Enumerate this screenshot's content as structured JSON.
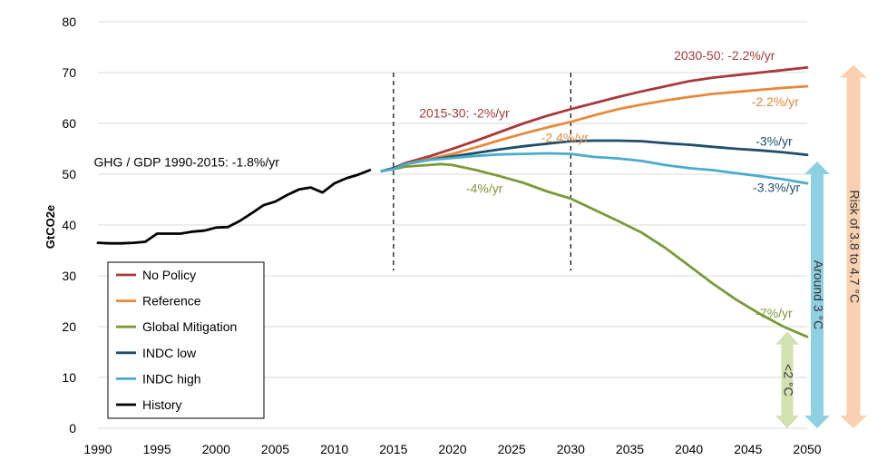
{
  "chart_data": {
    "type": "line",
    "xlabel": "",
    "ylabel": "GtCO2e",
    "xlim": [
      1990,
      2050
    ],
    "ylim": [
      0,
      80
    ],
    "x_ticks": [
      1990,
      1995,
      2000,
      2005,
      2010,
      2015,
      2020,
      2025,
      2030,
      2035,
      2040,
      2045,
      2050
    ],
    "y_ticks": [
      0,
      10,
      20,
      30,
      40,
      50,
      60,
      70,
      80
    ],
    "grid": "horizontal",
    "legend_position": "bottom-left",
    "series": [
      {
        "name": "No Policy",
        "color": "#a83a3a",
        "x": [
          2014,
          2015,
          2016,
          2018,
          2020,
          2022,
          2024,
          2026,
          2028,
          2030,
          2032,
          2034,
          2036,
          2038,
          2040,
          2042,
          2044,
          2046,
          2048,
          2050
        ],
        "y": [
          50.6,
          51.2,
          52.2,
          53.5,
          55.0,
          56.6,
          58.3,
          60.0,
          61.5,
          62.8,
          64.0,
          65.2,
          66.3,
          67.3,
          68.3,
          69.0,
          69.5,
          70.0,
          70.5,
          71.0
        ]
      },
      {
        "name": "Reference",
        "color": "#e8883a",
        "x": [
          2014,
          2015,
          2016,
          2018,
          2020,
          2022,
          2024,
          2026,
          2028,
          2030,
          2032,
          2034,
          2036,
          2038,
          2040,
          2042,
          2044,
          2046,
          2048,
          2050
        ],
        "y": [
          50.6,
          51.2,
          52.0,
          53.0,
          54.0,
          55.3,
          56.7,
          58.0,
          59.2,
          60.3,
          61.6,
          62.8,
          63.7,
          64.5,
          65.2,
          65.8,
          66.2,
          66.6,
          67.0,
          67.3
        ]
      },
      {
        "name": "Global Mitigation",
        "color": "#7a9a3a",
        "x": [
          2014,
          2015,
          2016,
          2018,
          2019,
          2020,
          2022,
          2024,
          2026,
          2028,
          2030,
          2032,
          2034,
          2036,
          2038,
          2040,
          2042,
          2044,
          2046,
          2048,
          2050
        ],
        "y": [
          50.6,
          51.0,
          51.5,
          51.8,
          52.0,
          51.8,
          50.8,
          49.6,
          48.3,
          46.6,
          45.2,
          43.0,
          40.8,
          38.5,
          35.5,
          32.0,
          28.5,
          25.3,
          22.5,
          20.0,
          18.0
        ]
      },
      {
        "name": "INDC low",
        "color": "#1f4e6b",
        "x": [
          2014,
          2015,
          2016,
          2018,
          2020,
          2022,
          2024,
          2026,
          2028,
          2030,
          2032,
          2034,
          2036,
          2038,
          2040,
          2042,
          2044,
          2046,
          2048,
          2050
        ],
        "y": [
          50.6,
          51.2,
          52.0,
          52.8,
          53.5,
          54.2,
          54.9,
          55.5,
          56.0,
          56.5,
          56.6,
          56.6,
          56.5,
          56.1,
          55.8,
          55.4,
          55.0,
          54.7,
          54.3,
          53.8
        ]
      },
      {
        "name": "INDC high",
        "color": "#4aaccc",
        "x": [
          2014,
          2015,
          2016,
          2018,
          2020,
          2022,
          2024,
          2026,
          2028,
          2030,
          2032,
          2034,
          2036,
          2038,
          2040,
          2042,
          2044,
          2046,
          2048,
          2050
        ],
        "y": [
          50.6,
          51.0,
          52.0,
          52.8,
          53.2,
          53.6,
          53.9,
          54.0,
          54.1,
          54.0,
          53.4,
          53.1,
          52.6,
          51.8,
          51.2,
          50.8,
          50.2,
          49.6,
          49.0,
          48.2
        ]
      },
      {
        "name": "History",
        "color": "#000000",
        "x": [
          1990,
          1991,
          1992,
          1993,
          1994,
          1995,
          1996,
          1997,
          1998,
          1999,
          2000,
          2001,
          2002,
          2003,
          2004,
          2005,
          2006,
          2007,
          2008,
          2009,
          2010,
          2011,
          2012,
          2013
        ],
        "y": [
          36.5,
          36.4,
          36.4,
          36.5,
          36.7,
          38.3,
          38.3,
          38.3,
          38.7,
          38.9,
          39.5,
          39.6,
          40.8,
          42.3,
          43.9,
          44.6,
          45.9,
          47.0,
          47.4,
          46.4,
          48.2,
          49.2,
          49.9,
          50.8
        ]
      }
    ],
    "vertical_markers": [
      2015,
      2030
    ],
    "annotations": [
      {
        "text": "GHG / GDP  1990-2015: -1.8%/yr",
        "x": 1997.5,
        "y": 51.5,
        "color": "#000000"
      },
      {
        "text": "2015-30: -2%/yr",
        "x": 2021,
        "y": 61.2,
        "color": "#a83a3a"
      },
      {
        "text": "2030-50: -2.2%/yr",
        "x": 2043,
        "y": 72.5,
        "color": "#a83a3a"
      },
      {
        "text": "-2.4%/yr",
        "x": 2029.5,
        "y": 56.3,
        "color": "#e8883a"
      },
      {
        "text": "-2.2%/yr",
        "x": 2047.3,
        "y": 63.4,
        "color": "#e8883a"
      },
      {
        "text": "-3%/yr",
        "x": 2047.2,
        "y": 55.6,
        "color": "#1f4e6b"
      },
      {
        "text": "-4%/yr",
        "x": 2022.7,
        "y": 46.3,
        "color": "#7a9a3a"
      },
      {
        "text": "-3.3%/yr",
        "x": 2047.4,
        "y": 46.5,
        "color": "#1f4e6b"
      },
      {
        "text": "-7%/yr",
        "x": 2047.2,
        "y": 21.8,
        "color": "#7a9a3a"
      }
    ],
    "range_arrows": [
      {
        "label": "<2 °C",
        "from": 0,
        "to": 19,
        "color": "#d3e0b0"
      },
      {
        "label": "Around 3 °C",
        "from": 0,
        "to": 52.5,
        "color": "#8ecfe0"
      },
      {
        "label": "Risk of 3.8 to 4.7 °C",
        "from": 0,
        "to": 71.5,
        "color": "#fad0b0"
      }
    ]
  }
}
